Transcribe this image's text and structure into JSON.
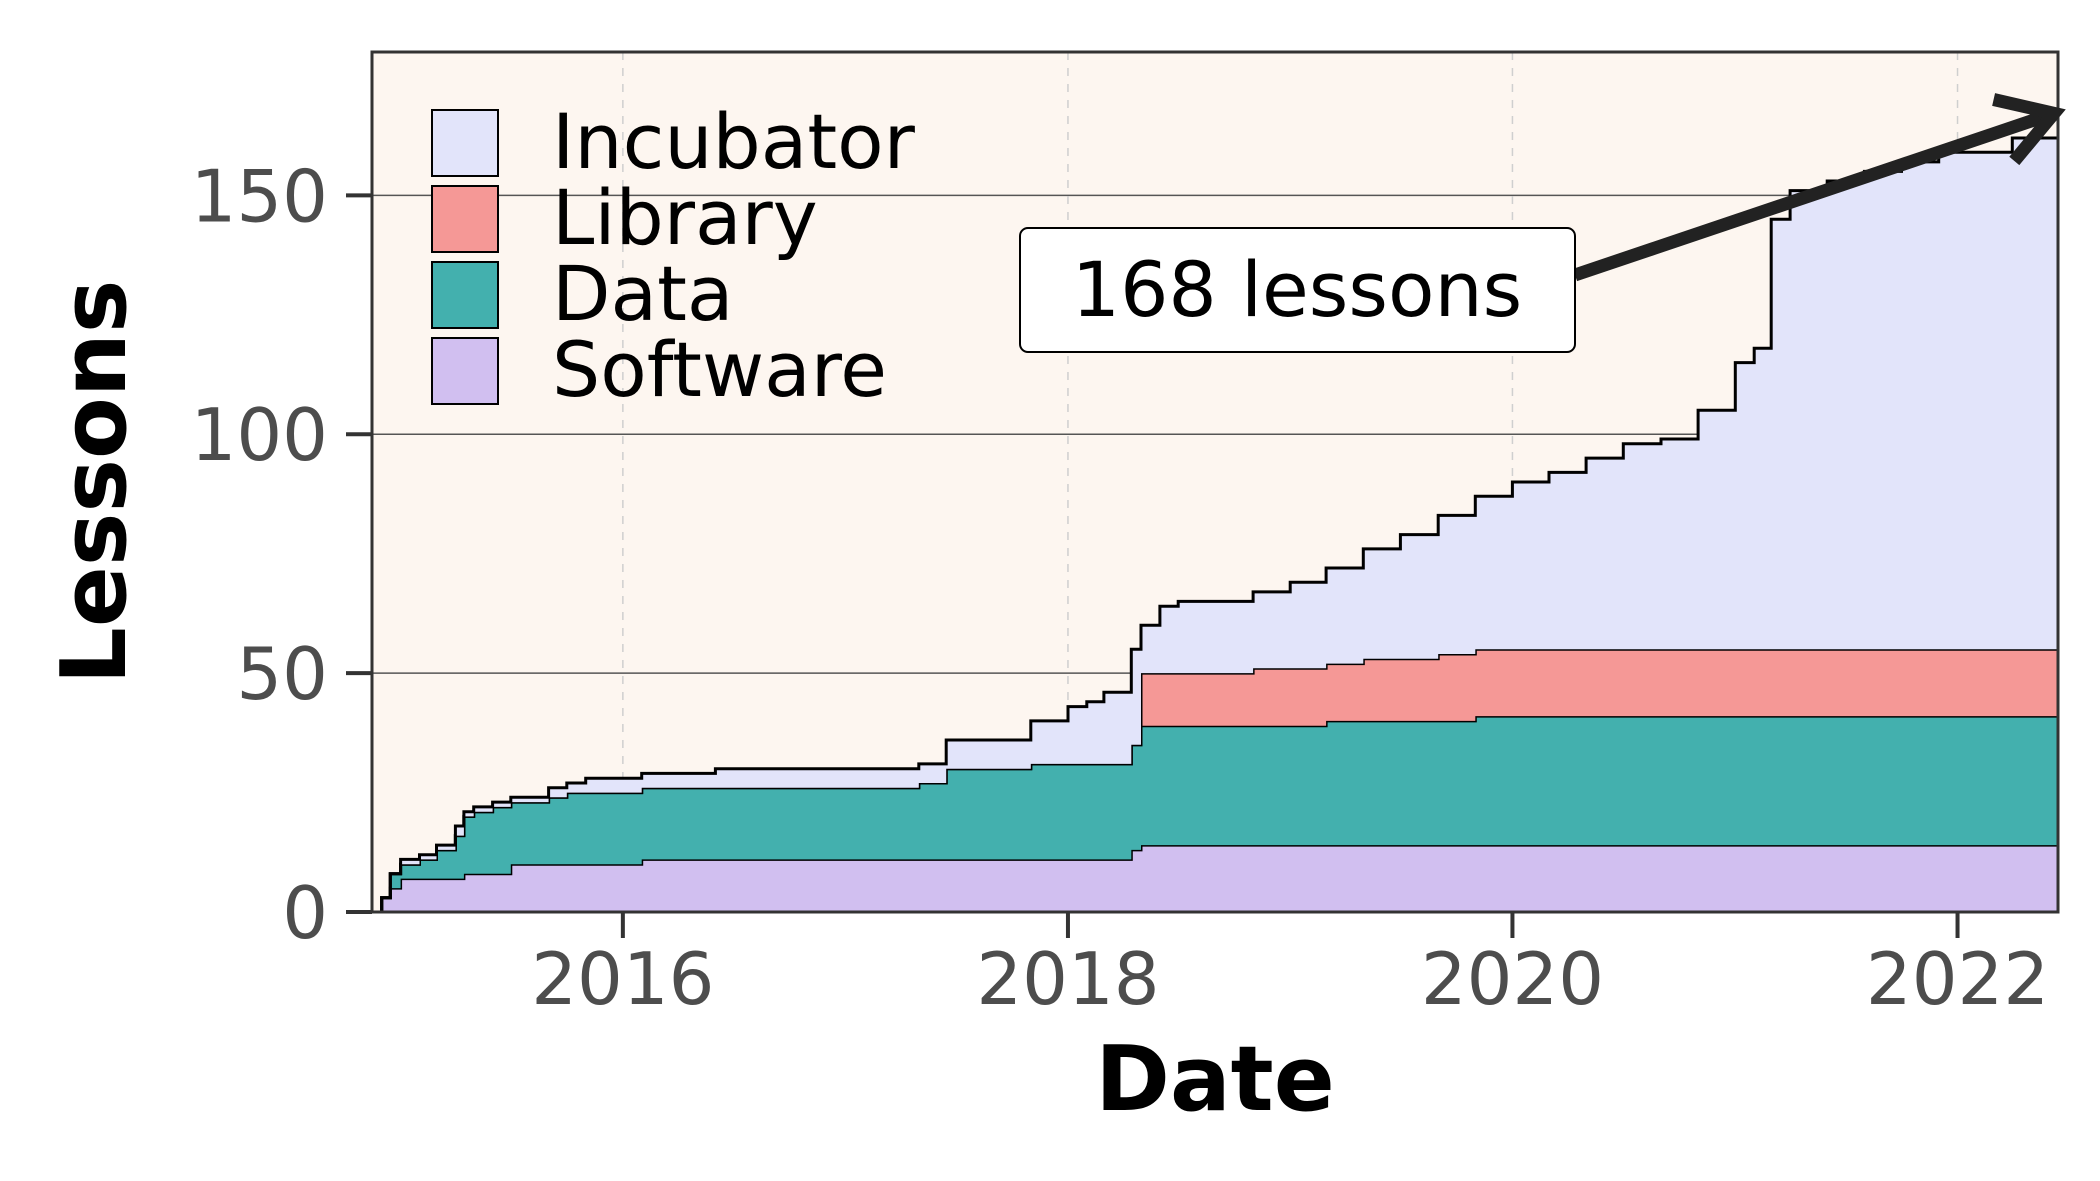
{
  "chart_data": {
    "type": "area",
    "stacked": true,
    "title": "",
    "xlabel": "Date",
    "ylabel": "Lessons",
    "x_type": "date",
    "xlim": [
      "2014-11-15",
      "2022-06-15"
    ],
    "ylim": [
      0,
      180
    ],
    "x_ticks": [
      {
        "date": "2016-01-01",
        "label": "2016"
      },
      {
        "date": "2018-01-01",
        "label": "2018"
      },
      {
        "date": "2020-01-01",
        "label": "2020"
      },
      {
        "date": "2022-01-01",
        "label": "2022"
      }
    ],
    "y_ticks": [
      {
        "value": 0,
        "label": "0"
      },
      {
        "value": 50,
        "label": "50"
      },
      {
        "value": 100,
        "label": "100"
      },
      {
        "value": 150,
        "label": "150"
      }
    ],
    "grid": true,
    "background": "#fdf6f0",
    "legend": {
      "position": "upper-left"
    },
    "x": [
      "2014-11-20",
      "2014-12-01",
      "2014-12-15",
      "2015-01-01",
      "2015-02-01",
      "2015-03-01",
      "2015-04-01",
      "2015-04-15",
      "2015-05-01",
      "2015-06-01",
      "2015-07-01",
      "2015-08-01",
      "2015-09-01",
      "2015-10-01",
      "2015-11-01",
      "2015-12-01",
      "2016-02-01",
      "2016-06-01",
      "2016-10-01",
      "2017-02-01",
      "2017-05-01",
      "2017-06-15",
      "2017-09-01",
      "2017-11-01",
      "2018-01-01",
      "2018-02-01",
      "2018-03-01",
      "2018-04-15",
      "2018-05-01",
      "2018-06-01",
      "2018-07-01",
      "2018-09-01",
      "2018-11-01",
      "2019-01-01",
      "2019-03-01",
      "2019-05-01",
      "2019-07-01",
      "2019-09-01",
      "2019-11-01",
      "2020-01-01",
      "2020-03-01",
      "2020-05-01",
      "2020-07-01",
      "2020-09-01",
      "2020-11-01",
      "2021-01-01",
      "2021-02-01",
      "2021-03-01",
      "2021-04-01",
      "2021-06-01",
      "2021-08-01",
      "2021-10-01",
      "2021-12-01",
      "2022-02-01",
      "2022-04-01",
      "2022-06-15"
    ],
    "series": [
      {
        "name": "Software",
        "color": "#d1bff0",
        "values": [
          0,
          3,
          5,
          7,
          7,
          7,
          7,
          8,
          8,
          8,
          10,
          10,
          10,
          10,
          10,
          10,
          11,
          11,
          11,
          11,
          11,
          11,
          11,
          11,
          11,
          11,
          11,
          13,
          14,
          14,
          14,
          14,
          14,
          14,
          14,
          14,
          14,
          14,
          14,
          14,
          14,
          14,
          14,
          14,
          14,
          14,
          14,
          14,
          14,
          14,
          14,
          14,
          14,
          14,
          14,
          14
        ]
      },
      {
        "name": "Data",
        "color": "#43b0ae",
        "values": [
          0,
          0,
          3,
          3,
          4,
          6,
          9,
          12,
          13,
          14,
          13,
          13,
          14,
          15,
          15,
          15,
          15,
          15,
          15,
          15,
          16,
          19,
          19,
          20,
          20,
          20,
          20,
          22,
          25,
          25,
          25,
          25,
          25,
          25,
          26,
          26,
          26,
          26,
          27,
          27,
          27,
          27,
          27,
          27,
          27,
          27,
          27,
          27,
          27,
          27,
          27,
          27,
          27,
          27,
          27,
          28
        ]
      },
      {
        "name": "Library",
        "color": "#f59896",
        "values": [
          0,
          0,
          0,
          0,
          0,
          0,
          0,
          0,
          0,
          0,
          0,
          0,
          0,
          0,
          0,
          0,
          0,
          0,
          0,
          0,
          0,
          0,
          0,
          0,
          0,
          0,
          0,
          0,
          11,
          11,
          11,
          11,
          12,
          12,
          12,
          13,
          13,
          14,
          14,
          14,
          14,
          14,
          14,
          14,
          14,
          14,
          14,
          14,
          14,
          14,
          14,
          14,
          14,
          14,
          14,
          14
        ]
      },
      {
        "name": "Incubator",
        "color": "#e2e4fa",
        "values": [
          0,
          0,
          0,
          1,
          1,
          1,
          2,
          1,
          1,
          1,
          1,
          1,
          2,
          2,
          3,
          3,
          3,
          4,
          4,
          4,
          4,
          6,
          6,
          9,
          12,
          13,
          15,
          20,
          10,
          14,
          15,
          15,
          16,
          18,
          20,
          23,
          26,
          29,
          32,
          35,
          37,
          40,
          43,
          44,
          50,
          60,
          63,
          90,
          96,
          98,
          100,
          102,
          104,
          104,
          107,
          112
        ]
      }
    ],
    "annotation": {
      "text": "168 lessons",
      "target_date": "2022-06-15",
      "target_value": 168
    }
  }
}
